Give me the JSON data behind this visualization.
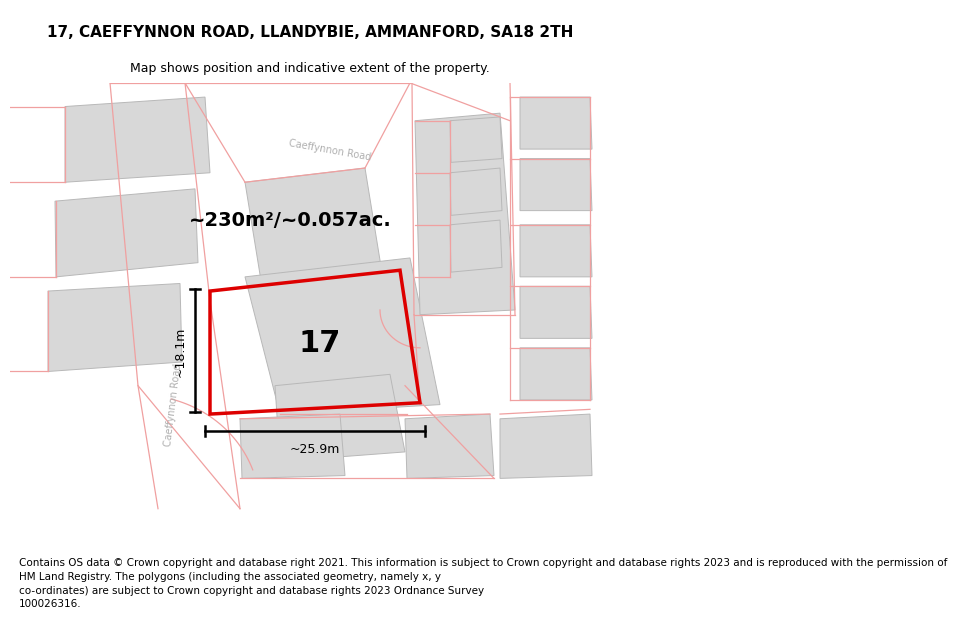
{
  "title": "17, CAEFFYNNON ROAD, LLANDYBIE, AMMANFORD, SA18 2TH",
  "subtitle": "Map shows position and indicative extent of the property.",
  "footer": "Contains OS data © Crown copyright and database right 2021. This information is subject to Crown copyright and database rights 2023 and is reproduced with the permission of\nHM Land Registry. The polygons (including the associated geometry, namely x, y\nco-ordinates) are subject to Crown copyright and database rights 2023 Ordnance Survey\n100026316.",
  "area_label": "~230m²/~0.057ac.",
  "number_label": "17",
  "dim_width": "~25.9m",
  "dim_height": "~18.1m",
  "road_label_upper": "Caeffynnon Road",
  "road_label_lower": "Caeffynnon Road",
  "bg_color": "#ffffff",
  "pink": "#f0a0a0",
  "gray_building": "#d8d8d8",
  "gray_building_edge": "#b8b8b8",
  "red_poly": "#dd0000",
  "road_gray": "#c0c0c0",
  "title_fontsize": 11,
  "subtitle_fontsize": 9,
  "footer_fontsize": 7.5,
  "area_fontsize": 14,
  "number_fontsize": 22,
  "dim_fontsize": 9
}
